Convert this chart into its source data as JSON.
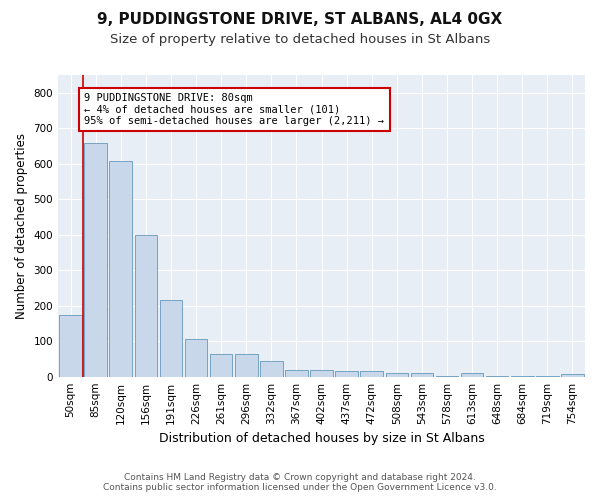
{
  "title": "9, PUDDINGSTONE DRIVE, ST ALBANS, AL4 0GX",
  "subtitle": "Size of property relative to detached houses in St Albans",
  "xlabel": "Distribution of detached houses by size in St Albans",
  "ylabel": "Number of detached properties",
  "footnote": "Contains HM Land Registry data © Crown copyright and database right 2024.\nContains public sector information licensed under the Open Government Licence v3.0.",
  "bar_color": "#c8d8ea",
  "bar_edge_color": "#6699bb",
  "categories": [
    "50sqm",
    "85sqm",
    "120sqm",
    "156sqm",
    "191sqm",
    "226sqm",
    "261sqm",
    "296sqm",
    "332sqm",
    "367sqm",
    "402sqm",
    "437sqm",
    "472sqm",
    "508sqm",
    "543sqm",
    "578sqm",
    "613sqm",
    "648sqm",
    "684sqm",
    "719sqm",
    "754sqm"
  ],
  "values": [
    175,
    658,
    608,
    400,
    215,
    107,
    64,
    63,
    44,
    20,
    18,
    17,
    15,
    9,
    9,
    2,
    9,
    1,
    1,
    1,
    8
  ],
  "ylim": [
    0,
    850
  ],
  "yticks": [
    0,
    100,
    200,
    300,
    400,
    500,
    600,
    700,
    800
  ],
  "annotation_text": "9 PUDDINGSTONE DRIVE: 80sqm\n← 4% of detached houses are smaller (101)\n95% of semi-detached houses are larger (2,211) →",
  "annotation_box_color": "#ffffff",
  "annotation_border_color": "#cc0000",
  "red_line_x": 0.5,
  "bg_color": "#e8eef5",
  "grid_color": "#ffffff",
  "fig_bg_color": "#ffffff",
  "title_fontsize": 11,
  "subtitle_fontsize": 9.5,
  "tick_fontsize": 7.5,
  "ylabel_fontsize": 8.5,
  "xlabel_fontsize": 9,
  "footnote_fontsize": 6.5
}
